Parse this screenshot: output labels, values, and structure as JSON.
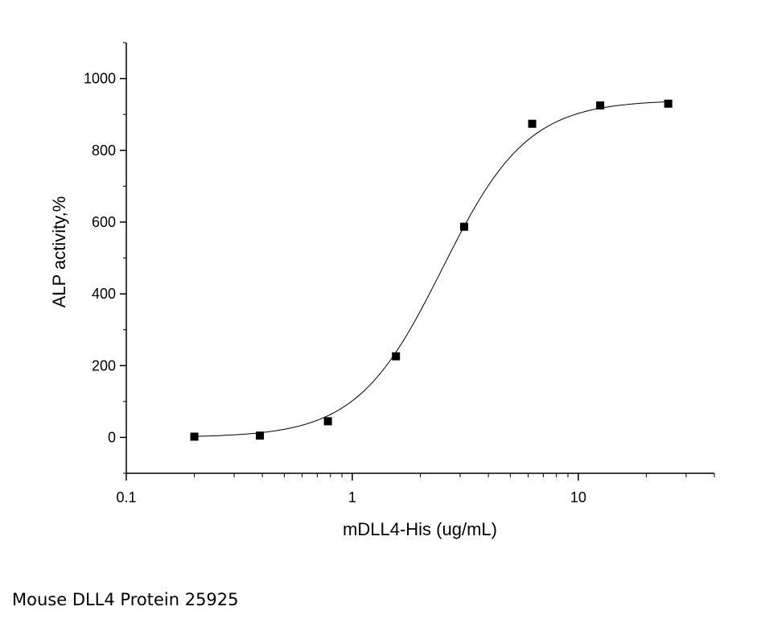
{
  "chart_data": {
    "type": "scatter",
    "xlabel": "mDLL4-His (ug/mL)",
    "ylabel": "ALP activity,%",
    "x_scale": "log",
    "xlim": [
      0.1,
      40
    ],
    "ylim": [
      -100,
      1100
    ],
    "x_ticks": [
      {
        "value": 0.1,
        "label": "0.1"
      },
      {
        "value": 1,
        "label": "1"
      },
      {
        "value": 10,
        "label": "10"
      }
    ],
    "y_ticks": [
      {
        "value": 0,
        "label": "0"
      },
      {
        "value": 200,
        "label": "200"
      },
      {
        "value": 400,
        "label": "400"
      },
      {
        "value": 600,
        "label": "600"
      },
      {
        "value": 800,
        "label": "800"
      },
      {
        "value": 1000,
        "label": "1000"
      }
    ],
    "grid": false,
    "series": [
      {
        "marker": "square",
        "color": "#000000",
        "points": [
          {
            "x": 0.2,
            "y": 2
          },
          {
            "x": 0.39,
            "y": 5
          },
          {
            "x": 0.78,
            "y": 45
          },
          {
            "x": 1.56,
            "y": 226
          },
          {
            "x": 3.125,
            "y": 587
          },
          {
            "x": 6.25,
            "y": 874
          },
          {
            "x": 12.5,
            "y": 925
          },
          {
            "x": 25,
            "y": 930
          }
        ]
      }
    ],
    "fit_curve": {
      "model": "4PL",
      "bottom": 0,
      "top": 940,
      "ec50": 2.5,
      "hill": 2.3,
      "x_range": [
        0.2,
        25
      ]
    }
  },
  "caption": "Mouse DLL4 Protein 25925"
}
